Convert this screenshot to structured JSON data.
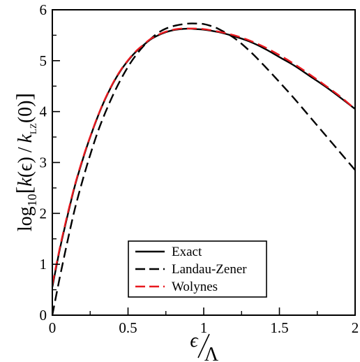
{
  "chart_data": {
    "type": "line",
    "title": "",
    "xlabel": {
      "numerator": "ϵ",
      "denominator": "Λ"
    },
    "ylabel": {
      "prefix": "log",
      "prefix_sub": "10",
      "open_bracket": "[",
      "k1": "k",
      "k1_arg": "(ϵ)",
      "slash": "/",
      "k2": "k",
      "k2_sub": "LZ",
      "k2_arg": "(0)",
      "close_bracket": "]"
    },
    "xlim": [
      0,
      2
    ],
    "ylim": [
      0,
      6
    ],
    "x_ticks": [
      "0",
      "0.5",
      "1",
      "1.5",
      "2"
    ],
    "y_ticks": [
      "0",
      "1",
      "2",
      "3",
      "4",
      "5",
      "6"
    ],
    "grid": false,
    "legend_position": "bottom-center",
    "series": [
      {
        "name": "Exact",
        "color": "#000000",
        "dash": "solid",
        "x": [
          0,
          0.05,
          0.1,
          0.15,
          0.2,
          0.25,
          0.3,
          0.35,
          0.4,
          0.45,
          0.5,
          0.55,
          0.6,
          0.65,
          0.7,
          0.75,
          0.8,
          0.85,
          0.9,
          0.95,
          1.0,
          1.1,
          1.2,
          1.3,
          1.4,
          1.5,
          1.6,
          1.7,
          1.8,
          1.9,
          2.0
        ],
        "y": [
          0.55,
          1.3,
          1.95,
          2.55,
          3.05,
          3.5,
          3.9,
          4.25,
          4.55,
          4.8,
          5.0,
          5.17,
          5.3,
          5.42,
          5.5,
          5.56,
          5.6,
          5.62,
          5.63,
          5.62,
          5.61,
          5.56,
          5.48,
          5.38,
          5.24,
          5.07,
          4.9,
          4.7,
          4.5,
          4.28,
          4.05
        ]
      },
      {
        "name": "Landau-Zener",
        "color": "#000000",
        "dash": "dashed",
        "x": [
          0,
          0.05,
          0.1,
          0.15,
          0.2,
          0.25,
          0.3,
          0.35,
          0.4,
          0.45,
          0.5,
          0.55,
          0.6,
          0.65,
          0.7,
          0.75,
          0.8,
          0.85,
          0.9,
          0.95,
          1.0,
          1.05,
          1.1,
          1.2,
          1.3,
          1.4,
          1.5,
          1.6,
          1.7,
          1.8,
          1.9,
          2.0
        ],
        "y": [
          0.0,
          0.75,
          1.45,
          2.1,
          2.65,
          3.15,
          3.6,
          3.98,
          4.32,
          4.62,
          4.88,
          5.1,
          5.28,
          5.43,
          5.55,
          5.63,
          5.68,
          5.71,
          5.73,
          5.73,
          5.72,
          5.68,
          5.62,
          5.45,
          5.2,
          4.9,
          4.58,
          4.25,
          3.9,
          3.55,
          3.2,
          2.85
        ]
      },
      {
        "name": "Wolynes",
        "color": "#e8191f",
        "dash": "dashed",
        "x": [
          0,
          0.05,
          0.1,
          0.15,
          0.2,
          0.25,
          0.3,
          0.35,
          0.4,
          0.45,
          0.5,
          0.55,
          0.6,
          0.65,
          0.7,
          0.75,
          0.8,
          0.85,
          0.9,
          0.95,
          1.0,
          1.1,
          1.2,
          1.3,
          1.4,
          1.5,
          1.6,
          1.7,
          1.8,
          1.9,
          2.0
        ],
        "y": [
          0.6,
          1.33,
          1.98,
          2.57,
          3.07,
          3.51,
          3.91,
          4.26,
          4.56,
          4.81,
          5.01,
          5.18,
          5.31,
          5.43,
          5.51,
          5.57,
          5.61,
          5.63,
          5.63,
          5.63,
          5.62,
          5.57,
          5.5,
          5.4,
          5.27,
          5.11,
          4.93,
          4.73,
          4.52,
          4.3,
          4.05
        ]
      }
    ]
  }
}
